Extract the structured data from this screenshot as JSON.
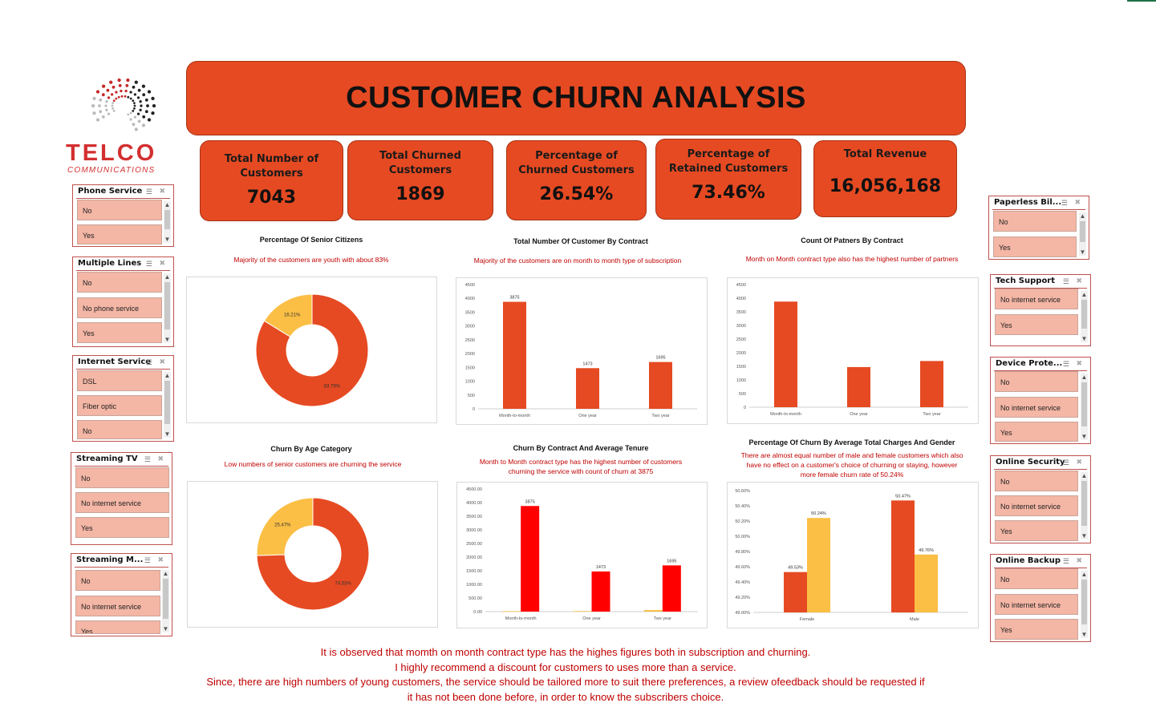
{
  "logo": {
    "name": "TELCO",
    "sub": "COMMUNICATIONS"
  },
  "title": "CUSTOMER CHURN ANALYSIS",
  "kpis": [
    {
      "label": "Total Number of Customers",
      "value": "7043"
    },
    {
      "label": "Total Churned Customers",
      "value": "1869"
    },
    {
      "label": "Percentage of Churned Customers",
      "value": "26.54%"
    },
    {
      "label": "Percentage of Retained Customers",
      "value": "73.46%"
    },
    {
      "label": "Total Revenue",
      "value": "16,056,168"
    }
  ],
  "slicers": [
    {
      "title": "Phone Service",
      "items": [
        "No",
        "Yes"
      ]
    },
    {
      "title": "Multiple Lines",
      "items": [
        "No",
        "No phone service",
        "Yes"
      ]
    },
    {
      "title": "Internet Service",
      "items": [
        "DSL",
        "Fiber optic",
        "No"
      ]
    },
    {
      "title": "Streaming TV",
      "items": [
        "No",
        "No internet service",
        "Yes"
      ]
    },
    {
      "title": "Streaming M...",
      "items": [
        "No",
        "No internet service",
        "Yes"
      ]
    },
    {
      "title": "Paperless Bil...",
      "items": [
        "No",
        "Yes"
      ]
    },
    {
      "title": "Tech Support",
      "items": [
        "No internet service",
        "Yes"
      ]
    },
    {
      "title": "Device Prote...",
      "items": [
        "No",
        "No internet service",
        "Yes"
      ]
    },
    {
      "title": "Online Security",
      "items": [
        "No",
        "No internet service",
        "Yes"
      ]
    },
    {
      "title": "Online Backup",
      "items": [
        "No",
        "No internet service",
        "Yes"
      ]
    }
  ],
  "charts": {
    "senior": {
      "title": "Percentage Of Senior Citizens",
      "note": "Majority of the customers are youth with about 83%"
    },
    "contract": {
      "title": "Total Number Of Customer By Contract",
      "note": "Majority of the customers are on month to month type of subscription"
    },
    "partners": {
      "title": "Count Of Patners By Contract",
      "note": "Month on Month contract type also has the highest number of partners"
    },
    "age": {
      "title": "Churn By Age Category",
      "note": "Low numbers of senior customers are churning the service"
    },
    "tenure": {
      "title": "Churn By Contract And Average Tenure",
      "note1": "Month to Month contract type has the highest number of customers",
      "note2": "churning the service with count of churn at 3875"
    },
    "gender": {
      "title": "Percentage Of Churn By Average Total Charges And Gender",
      "note1": "There are almost equal number of male and female customers which also",
      "note2": "have no effect on a customer's choice of churning or staying, however",
      "note3": "more female churn rate of 50.24%"
    }
  },
  "chart_data": [
    {
      "type": "pie",
      "donut": true,
      "labels": [
        "16.21%",
        "83.79%"
      ],
      "values": [
        16.21,
        83.79
      ],
      "colors": [
        "#fbbf45",
        "#e64a22"
      ]
    },
    {
      "type": "bar",
      "categories": [
        "Month-to-month",
        "One year",
        "Two year"
      ],
      "values": [
        3875,
        1473,
        1695
      ],
      "data_labels": [
        "3875",
        "1473",
        "1695"
      ],
      "yticks": [
        "0",
        "500",
        "1000",
        "1500",
        "2000",
        "2500",
        "3000",
        "3500",
        "4000",
        "4500"
      ],
      "ylim": [
        0,
        4500
      ],
      "color": "#e64a22"
    },
    {
      "type": "bar",
      "categories": [
        "Month-to-month",
        "One year",
        "Two year"
      ],
      "values": [
        3875,
        1473,
        1695
      ],
      "yticks": [
        "0",
        "500",
        "1000",
        "1500",
        "2000",
        "2500",
        "3000",
        "3500",
        "4000",
        "4500"
      ],
      "ylim": [
        0,
        4500
      ],
      "color": "#e64a22"
    },
    {
      "type": "pie",
      "donut": true,
      "labels": [
        "25.47%",
        "74.53%"
      ],
      "values": [
        25.47,
        74.53
      ],
      "colors": [
        "#fbbf45",
        "#e64a22"
      ]
    },
    {
      "type": "bar",
      "categories": [
        "Month-to-month",
        "One year",
        "Two year"
      ],
      "series": [
        {
          "values": [
            18,
            21,
            57
          ],
          "color": "#fbbf45"
        },
        {
          "values": [
            3875,
            1473,
            1695
          ],
          "color": "#ff0000"
        }
      ],
      "data_labels": [
        "3875",
        "1473",
        "1695"
      ],
      "yticks": [
        "0.00",
        "500.00",
        "1000.00",
        "1500.00",
        "2000.00",
        "2500.00",
        "3000.00",
        "3500.00",
        "4000.00",
        "4500.00"
      ],
      "ylim": [
        0,
        4500
      ]
    },
    {
      "type": "bar",
      "categories": [
        "Female",
        "Male"
      ],
      "series": [
        {
          "values": [
            49.53,
            50.47
          ],
          "color": "#e64a22"
        },
        {
          "values": [
            50.24,
            49.76
          ],
          "color": "#fbbf45"
        }
      ],
      "data_labels": [
        [
          "49.53%",
          "50.47%"
        ],
        [
          "50.24%",
          "49.76%"
        ]
      ],
      "yticks": [
        "49.00%",
        "49.20%",
        "49.40%",
        "49.60%",
        "49.80%",
        "50.00%",
        "50.20%",
        "50.40%",
        "50.60%"
      ],
      "ylim": [
        49.0,
        50.6
      ]
    }
  ],
  "footer": [
    "It is observed that momth on month contract type has the highes figures both in subscription and churning.",
    "I highly recommend a discount for customers to uses more than a service.",
    "Since, there are high numbers of young customers, the service should be tailored more to suit there preferences, a review ofeedback should be requested if",
    "it has not been done before, in order to know the subscribers choice."
  ]
}
